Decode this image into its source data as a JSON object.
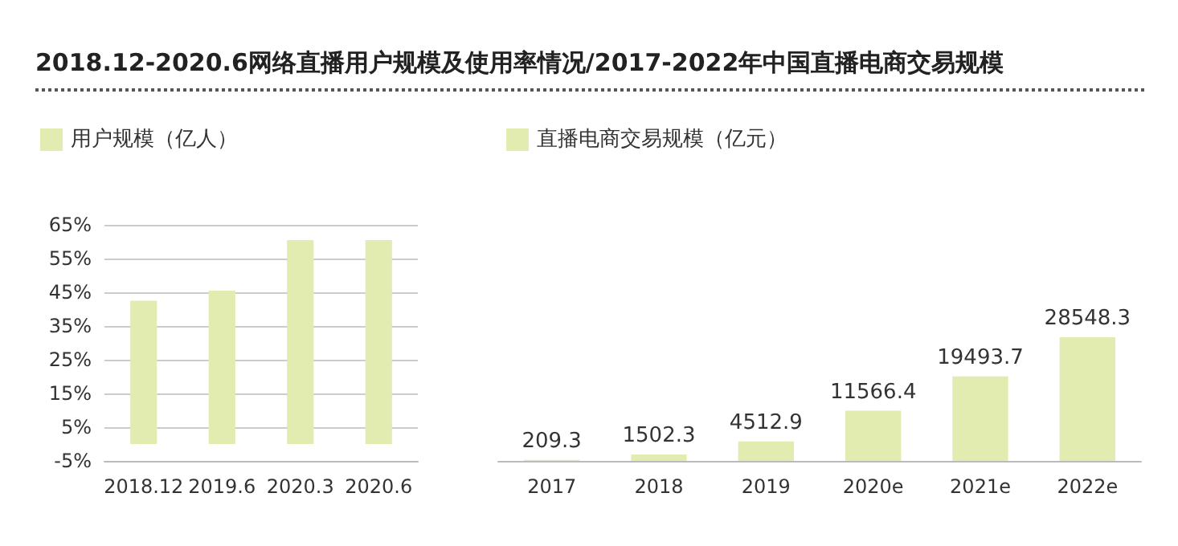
{
  "chart_data": [
    {
      "type": "bar",
      "title": "2018.12-2020.6网络直播用户规模及使用率情况/2017-2022年中国直播电商交易规模",
      "categories": [
        "2018.12",
        "2019.6",
        "2020.3",
        "2020.6"
      ],
      "series": [
        {
          "name": "用户规模（亿人）",
          "color": "#e2ebb0",
          "values": [
            42.5,
            45.5,
            60.5,
            60.5
          ]
        }
      ],
      "ylim": [
        -5,
        65
      ],
      "yticks": [
        {
          "value": -5,
          "label": "-5%"
        },
        {
          "value": 5,
          "label": "5%"
        },
        {
          "value": 15,
          "label": "15%"
        },
        {
          "value": 25,
          "label": "25%"
        },
        {
          "value": 35,
          "label": "35%"
        },
        {
          "value": 45,
          "label": "45%"
        },
        {
          "value": 55,
          "label": "55%"
        },
        {
          "value": 65,
          "label": "65%"
        }
      ],
      "grid": "y",
      "legend": "top left"
    },
    {
      "type": "bar",
      "categories": [
        "2017",
        "2018",
        "2019",
        "2020e",
        "2021e",
        "2022e"
      ],
      "series": [
        {
          "name": "直播电商交易规模（亿元）",
          "color": "#e2ebb0",
          "values": [
            209.3,
            1502.3,
            4512.9,
            11566.4,
            19493.7,
            28548.3
          ]
        }
      ],
      "data_labels": true,
      "tick_labels": "x",
      "legend": "top left"
    }
  ]
}
